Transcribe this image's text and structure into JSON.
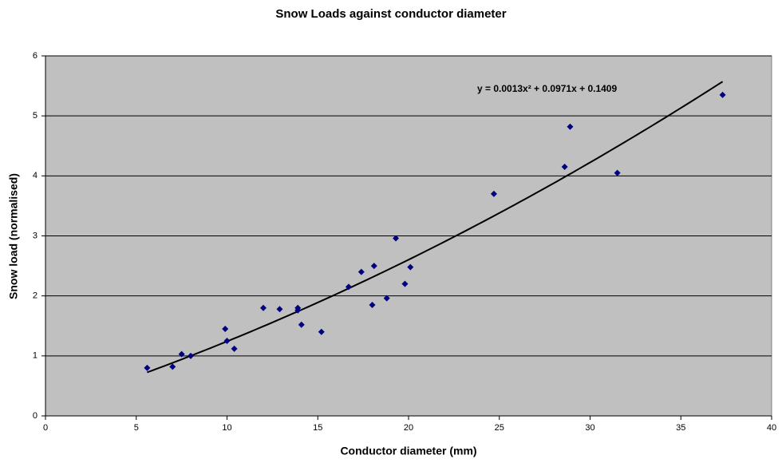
{
  "chart_data": {
    "type": "scatter",
    "title": "Snow Loads against conductor diameter",
    "x_label": "Conductor diameter (mm)",
    "y_label": "Snow load (normalised)",
    "x": [
      5.6,
      7.0,
      7.5,
      8.0,
      9.9,
      10.0,
      10.4,
      12.0,
      12.9,
      13.9,
      13.9,
      14.1,
      15.2,
      16.7,
      17.4,
      18.0,
      18.1,
      18.8,
      19.3,
      19.8,
      20.1,
      24.7,
      28.6,
      28.9,
      31.5,
      37.3
    ],
    "values": [
      0.8,
      0.82,
      1.03,
      1.0,
      1.45,
      1.25,
      1.12,
      1.8,
      1.78,
      1.8,
      1.76,
      1.52,
      1.4,
      2.15,
      2.4,
      1.85,
      2.5,
      1.96,
      2.96,
      2.2,
      2.48,
      3.7,
      4.15,
      4.82,
      4.05,
      5.35
    ],
    "color": "#000080",
    "trendline": {
      "label": "y = 0.0013x² + 0.0971x + 0.1409",
      "coefficients": [
        0.0013,
        0.0971,
        0.1409
      ],
      "color": "#000000"
    },
    "xlim": [
      0,
      40
    ],
    "xticks": [
      0,
      5,
      10,
      15,
      20,
      25,
      30,
      35,
      40
    ],
    "ylim": [
      0,
      6
    ],
    "yticks": [
      0,
      1,
      2,
      3,
      4,
      5,
      6
    ],
    "grid": true
  }
}
